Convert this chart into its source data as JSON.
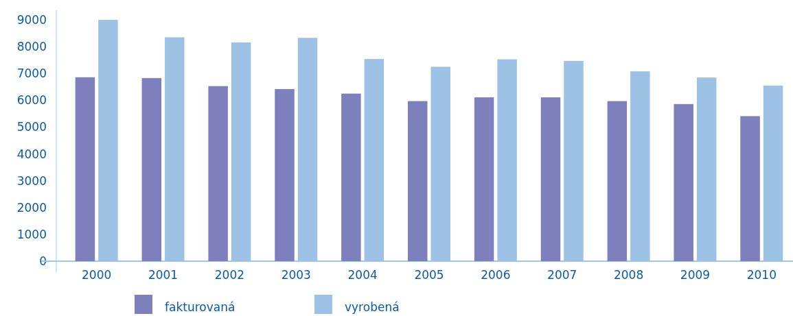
{
  "chart_data": {
    "type": "bar",
    "categories": [
      "2000",
      "2001",
      "2002",
      "2003",
      "2004",
      "2005",
      "2006",
      "2007",
      "2008",
      "2009",
      "2010"
    ],
    "series": [
      {
        "name": "fakturovaná",
        "color": "#7e7fbd",
        "values": [
          6860,
          6830,
          6530,
          6420,
          6250,
          5970,
          6110,
          6110,
          5970,
          5860,
          5410
        ]
      },
      {
        "name": "vyrobená",
        "color": "#9ec1e6",
        "values": [
          9000,
          8350,
          8160,
          8330,
          7540,
          7250,
          7530,
          7470,
          7080,
          6850,
          6550
        ]
      }
    ],
    "ylim": [
      0,
      9000
    ],
    "yticks": [
      0,
      1000,
      2000,
      3000,
      4000,
      5000,
      6000,
      7000,
      8000,
      9000
    ],
    "legend": "bottom"
  }
}
